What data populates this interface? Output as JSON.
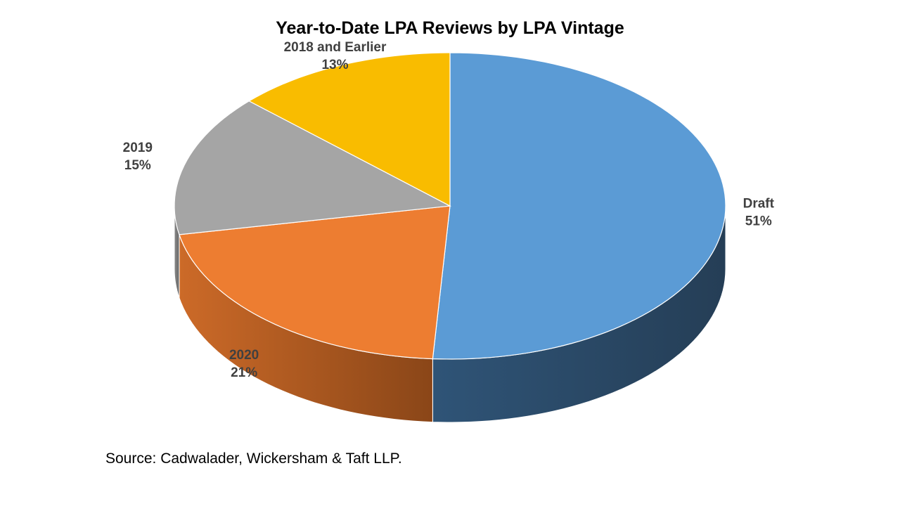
{
  "chart_data": {
    "type": "pie",
    "title": "Year-to-Date LPA Reviews by LPA Vintage",
    "source": "Source: Cadwalader, Wickersham & Taft LLP.",
    "slices": [
      {
        "label": "Draft",
        "value": 51,
        "value_label": "51%",
        "color": "#5b9bd5",
        "side_dark": "#253e56",
        "side_light": "#2f5477"
      },
      {
        "label": "2020",
        "value": 21,
        "value_label": "21%",
        "color": "#ed7d31",
        "side_dark": "#8a4618",
        "side_light": "#cc6a28"
      },
      {
        "label": "2019",
        "value": 15,
        "value_label": "15%",
        "color": "#a5a5a5",
        "side_dark": "#666666",
        "side_light": "#8a8a8a"
      },
      {
        "label": "2018 and Earlier",
        "value": 13,
        "value_label": "13%",
        "color": "#f9bc00",
        "side_dark": "#8a6900",
        "side_light": "#c99800"
      }
    ],
    "start_angle_deg": 0,
    "direction": "clockwise",
    "style": "3d"
  }
}
